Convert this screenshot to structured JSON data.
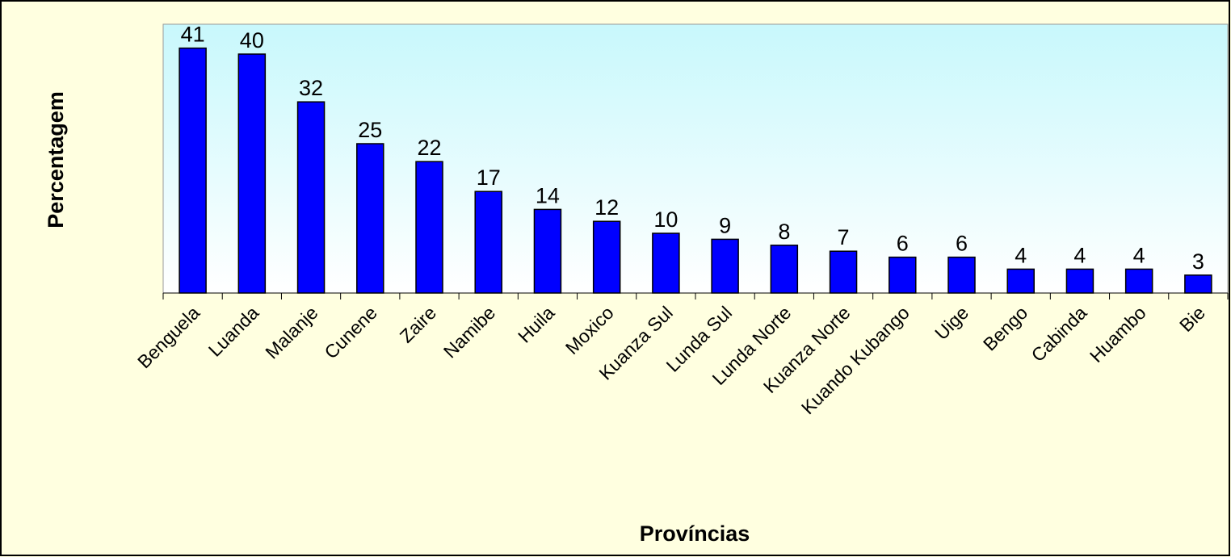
{
  "chart_data": {
    "type": "bar",
    "x_label": "Províncias",
    "y_label": "Percentagem",
    "categories": [
      "Benguela",
      "Luanda",
      "Malanje",
      "Cunene",
      "Zaire",
      "Namibe",
      "Huila",
      "Moxico",
      "Kuanza Sul",
      "Lunda Sul",
      "Lunda Norte",
      "Kuanza Norte",
      "Kuando Kubango",
      "Uige",
      "Bengo",
      "Cabinda",
      "Huambo",
      "Bie"
    ],
    "values": [
      41,
      40,
      32,
      25,
      22,
      17,
      14,
      12,
      10,
      9,
      8,
      7,
      6,
      6,
      4,
      4,
      4,
      3
    ],
    "color": "#0000ff",
    "ylim": [
      0,
      45
    ]
  }
}
